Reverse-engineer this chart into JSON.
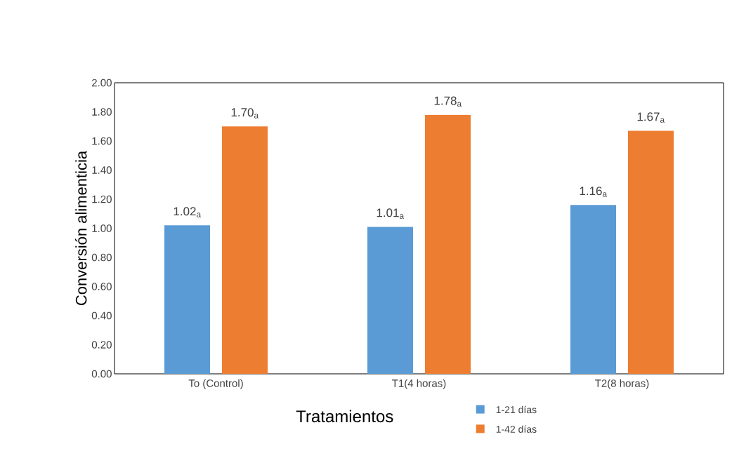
{
  "chart_data": {
    "type": "bar",
    "xlabel": "Tratamientos",
    "ylabel": "Conversión alimenticia",
    "categories": [
      "To (Control)",
      "T1(4 horas)",
      "T2(8 horas)"
    ],
    "series": [
      {
        "name": "1-21 días",
        "color": "#5b9bd5",
        "values": [
          1.02,
          1.01,
          1.16
        ],
        "value_labels": [
          "1.02$_{a}$",
          "1.01$_{a}$",
          "1.16$_{a}$"
        ]
      },
      {
        "name": "1-42 días",
        "color": "#ed7d31",
        "values": [
          1.7,
          1.78,
          1.67
        ],
        "value_labels": [
          "1.70$_{a}$",
          "1.78$_{a}$",
          "1.67$_{a}$"
        ]
      }
    ],
    "ylim": [
      0,
      2
    ],
    "yticks": [
      {
        "value": 0,
        "label": "0.00"
      },
      {
        "value": 0.2,
        "label": "0.20"
      },
      {
        "value": 0.4,
        "label": "0.40"
      },
      {
        "value": 0.6,
        "label": "0.60"
      },
      {
        "value": 0.8,
        "label": "0.80"
      },
      {
        "value": 1.0,
        "label": "1.00"
      },
      {
        "value": 1.2,
        "label": "1.20"
      },
      {
        "value": 1.4,
        "label": "1.40"
      },
      {
        "value": 1.6,
        "label": "1.60"
      },
      {
        "value": 1.8,
        "label": "1.80"
      },
      {
        "value": 2.0,
        "label": "2.00"
      }
    ],
    "grid": false,
    "legend": "bottom"
  }
}
